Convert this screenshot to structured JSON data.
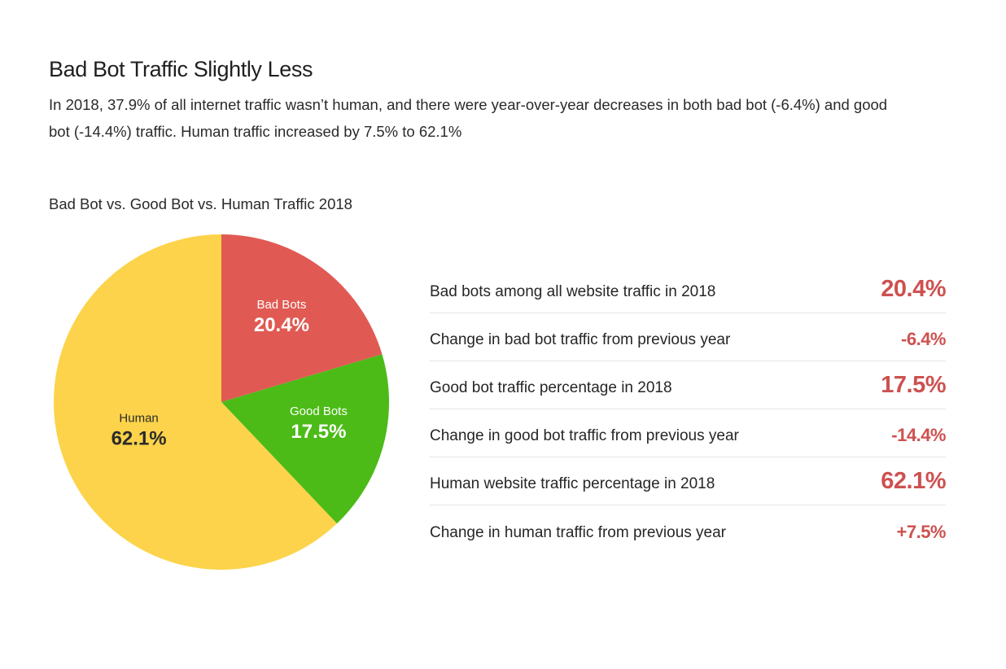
{
  "header": {
    "title": "Bad Bot Traffic Slightly Less",
    "description": "In 2018, 37.9% of all internet traffic wasn’t human, and there were year-over-year decreases in both bad bot (-6.4%) and good bot (-14.4%) traffic. Human traffic increased by 7.5% to 62.1%"
  },
  "chart_data": {
    "type": "pie",
    "title": "Bad Bot vs. Good Bot vs. Human Traffic 2018",
    "slices": [
      {
        "name": "Bad Bots",
        "value": 20.4,
        "label": "20.4%",
        "color": "#e05a53",
        "text_color": "#ffffff"
      },
      {
        "name": "Good Bots",
        "value": 17.5,
        "label": "17.5%",
        "color": "#4cbb17",
        "text_color": "#ffffff"
      },
      {
        "name": "Human",
        "value": 62.1,
        "label": "62.1%",
        "color": "#fcd34a",
        "text_color": "#2a2a2a"
      }
    ]
  },
  "stats": [
    {
      "label": "Bad bots among all website traffic in 2018",
      "value": "20.4%",
      "size": "big"
    },
    {
      "label": "Change in bad bot traffic from previous year",
      "value": "-6.4%",
      "size": "small"
    },
    {
      "label": "Good bot traffic percentage in 2018",
      "value": "17.5%",
      "size": "big"
    },
    {
      "label": "Change in good bot traffic from previous year",
      "value": "-14.4%",
      "size": "small"
    },
    {
      "label": "Human website traffic percentage in 2018",
      "value": "62.1%",
      "size": "big"
    },
    {
      "label": "Change in human traffic from previous year",
      "value": "+7.5%",
      "size": "small"
    }
  ],
  "colors": {
    "accent": "#cd5150",
    "divider": "#e4e4e4"
  }
}
